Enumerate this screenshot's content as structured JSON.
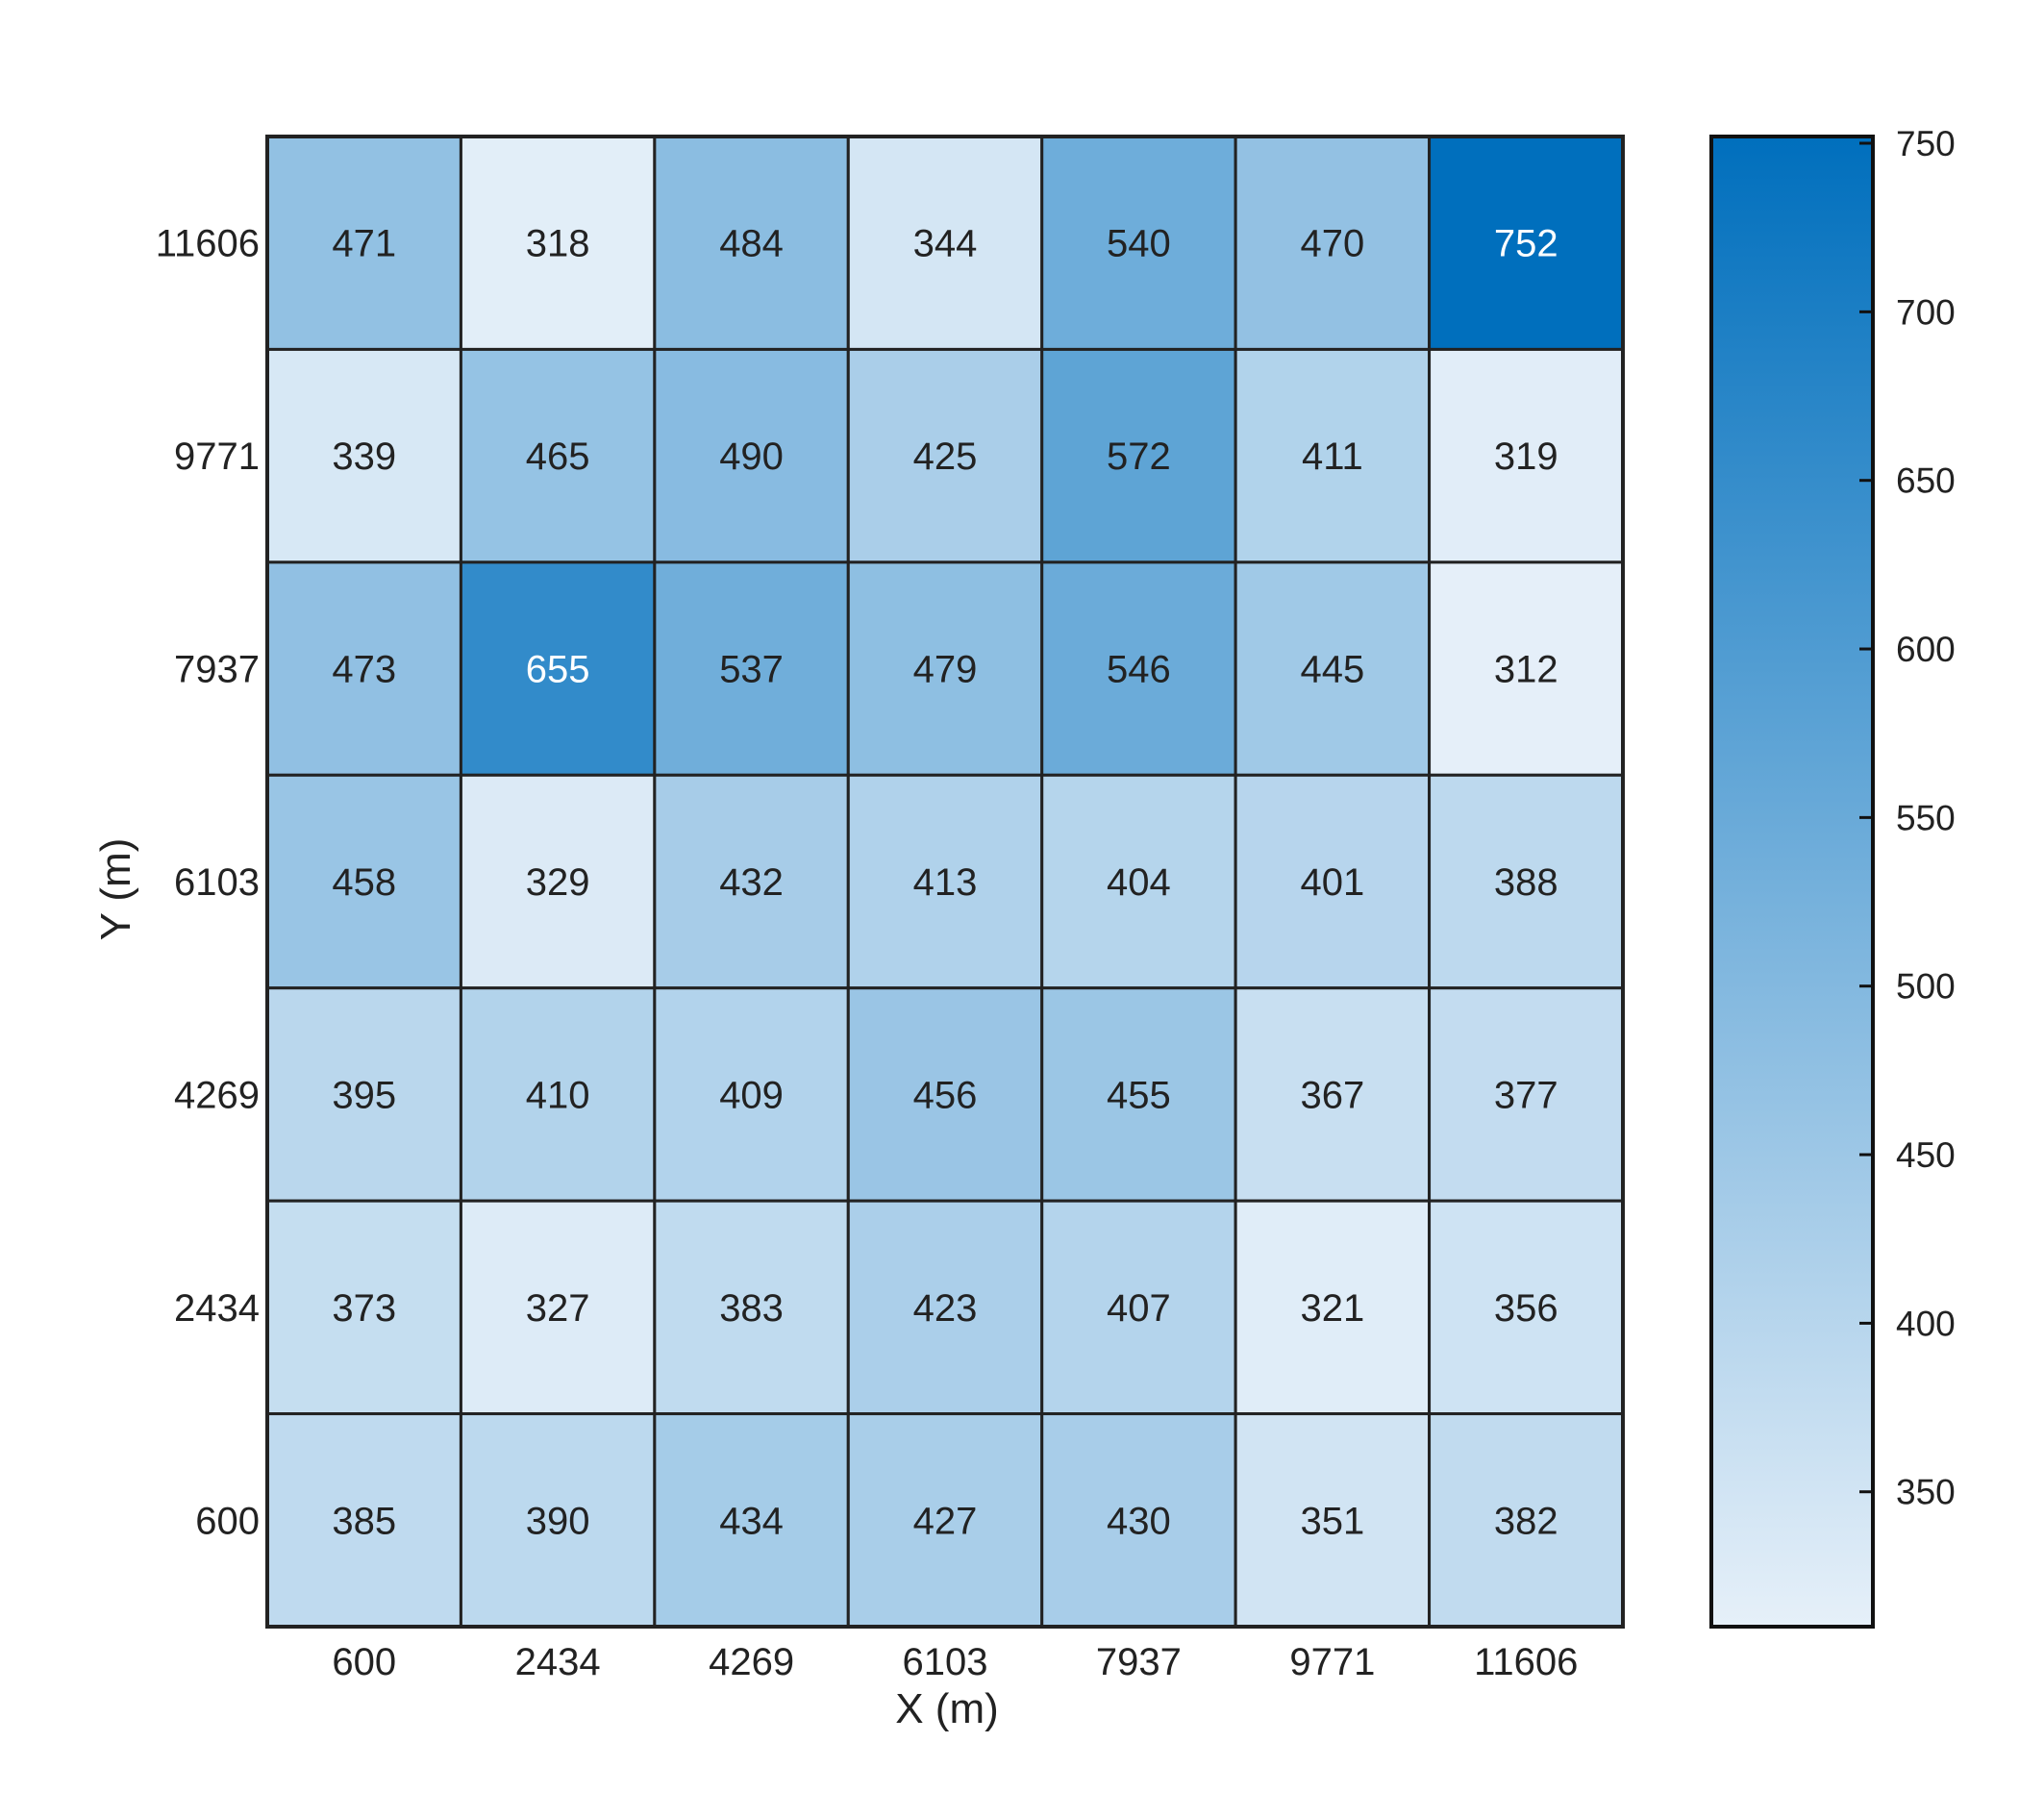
{
  "chart_data": {
    "type": "heatmap",
    "x_categories": [
      "600",
      "2434",
      "4269",
      "6103",
      "7937",
      "9771",
      "11606"
    ],
    "y_categories": [
      "11606",
      "9771",
      "7937",
      "6103",
      "4269",
      "2434",
      "600"
    ],
    "values": [
      [
        471,
        318,
        484,
        344,
        540,
        470,
        752
      ],
      [
        339,
        465,
        490,
        425,
        572,
        411,
        319
      ],
      [
        473,
        655,
        537,
        479,
        546,
        445,
        312
      ],
      [
        458,
        329,
        432,
        413,
        404,
        401,
        388
      ],
      [
        395,
        410,
        409,
        456,
        455,
        367,
        377
      ],
      [
        373,
        327,
        383,
        423,
        407,
        321,
        356
      ],
      [
        385,
        390,
        434,
        427,
        430,
        351,
        382
      ]
    ],
    "xlabel": "X (m)",
    "ylabel": "Y (m)",
    "colorbar": {
      "range": [
        310,
        752
      ],
      "ticks": [
        350,
        400,
        450,
        500,
        550,
        600,
        650,
        700,
        750
      ],
      "colormap": [
        "#e6f0f9",
        "#006fbd"
      ]
    },
    "grid": true
  }
}
